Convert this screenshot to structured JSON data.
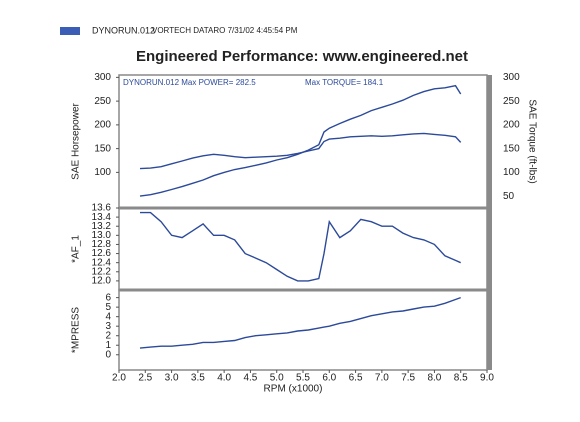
{
  "header": {
    "swatch_label": "DYNORUN.012",
    "info": "VORTECH DATARO 7/31/02 4:45:54 PM",
    "color": "#3b5db5"
  },
  "chart_data": [
    {
      "type": "line",
      "title": "Engineered Performance:   www.engineered.net",
      "annotations": [
        "DYNORUN.012  Max POWER= 282.5",
        "Max TORQUE= 184.1"
      ],
      "ylabel": "SAE Horsepower",
      "y2label": "SAE Torque (ft-lbs)",
      "x": [
        2.4,
        2.6,
        2.8,
        3.0,
        3.2,
        3.4,
        3.6,
        3.8,
        4.0,
        4.2,
        4.4,
        4.6,
        4.8,
        5.0,
        5.2,
        5.4,
        5.6,
        5.8,
        5.9,
        6.0,
        6.2,
        6.4,
        6.6,
        6.8,
        7.0,
        7.2,
        7.4,
        7.6,
        7.8,
        8.0,
        8.2,
        8.4,
        8.5
      ],
      "ylim": [
        25,
        305
      ],
      "yticks": [
        100,
        150,
        200,
        250,
        300
      ],
      "y2lim": [
        25,
        305
      ],
      "y2ticks": [
        50,
        100,
        150,
        200,
        250,
        300
      ],
      "series": [
        {
          "color": "#2c4a9a",
          "axis": "y",
          "values": [
            50,
            53,
            58,
            64,
            70,
            77,
            84,
            93,
            100,
            106,
            110,
            115,
            120,
            126,
            131,
            138,
            147,
            158,
            185,
            193,
            203,
            212,
            220,
            230,
            237,
            244,
            252,
            262,
            270,
            276,
            278,
            282.5,
            265
          ]
        },
        {
          "color": "#2c4a9a",
          "axis": "y2",
          "values": [
            108,
            109,
            112,
            118,
            124,
            130,
            135,
            138,
            136,
            133,
            131,
            132,
            133,
            134,
            136,
            140,
            145,
            150,
            165,
            170,
            172,
            175,
            176,
            177,
            176,
            177,
            179,
            181,
            182,
            180,
            178,
            175,
            163
          ]
        }
      ]
    },
    {
      "type": "line",
      "ylabel": "*AF_1",
      "x": [
        2.4,
        2.6,
        2.8,
        3.0,
        3.2,
        3.4,
        3.6,
        3.8,
        4.0,
        4.2,
        4.4,
        4.6,
        4.8,
        5.0,
        5.2,
        5.4,
        5.6,
        5.8,
        5.9,
        6.0,
        6.2,
        6.4,
        6.6,
        6.8,
        7.0,
        7.2,
        7.4,
        7.6,
        7.8,
        8.0,
        8.2,
        8.4,
        8.5
      ],
      "ylim": [
        11.8,
        13.6
      ],
      "yticks": [
        {
          "value": 12,
          "label": "12.0"
        },
        12.2,
        12.4,
        12.6,
        12.8,
        {
          "value": 13,
          "label": "13.0"
        },
        13.2,
        13.4,
        13.6
      ],
      "series": [
        {
          "color": "#2c4a9a",
          "values": [
            13.5,
            13.5,
            13.3,
            13.0,
            12.95,
            13.1,
            13.25,
            13.0,
            13.0,
            12.9,
            12.6,
            12.5,
            12.4,
            12.25,
            12.1,
            12.0,
            12.0,
            12.05,
            12.6,
            13.3,
            12.95,
            13.1,
            13.35,
            13.3,
            13.2,
            13.2,
            13.05,
            12.95,
            12.9,
            12.8,
            12.55,
            12.45,
            12.4
          ]
        }
      ]
    },
    {
      "type": "line",
      "ylabel": "*MPRESS",
      "xlabel": "RPM (x1000)",
      "x": [
        2.4,
        2.6,
        2.8,
        3.0,
        3.2,
        3.4,
        3.6,
        3.8,
        4.0,
        4.2,
        4.4,
        4.6,
        4.8,
        5.0,
        5.2,
        5.4,
        5.6,
        5.8,
        5.9,
        6.0,
        6.2,
        6.4,
        6.6,
        6.8,
        7.0,
        7.2,
        7.4,
        7.6,
        7.8,
        8.0,
        8.2,
        8.4,
        8.5
      ],
      "ylim": [
        -1.6,
        6.8
      ],
      "yticks": [
        0,
        1,
        2,
        3,
        4,
        5,
        6
      ],
      "xlim": [
        2.0,
        9.0
      ],
      "xticks": [
        {
          "value": 2,
          "label": "2.0"
        },
        2.5,
        {
          "value": 3,
          "label": "3.0"
        },
        3.5,
        {
          "value": 4,
          "label": "4.0"
        },
        4.5,
        {
          "value": 5,
          "label": "5.0"
        },
        5.5,
        {
          "value": 6,
          "label": "6.0"
        },
        6.5,
        {
          "value": 7,
          "label": "7.0"
        },
        7.5,
        {
          "value": 8,
          "label": "8.0"
        },
        8.5,
        {
          "value": 9,
          "label": "9.0"
        }
      ],
      "series": [
        {
          "color": "#2c4a9a",
          "values": [
            0.7,
            0.8,
            0.9,
            0.9,
            1.0,
            1.1,
            1.3,
            1.3,
            1.4,
            1.5,
            1.8,
            2.0,
            2.1,
            2.2,
            2.3,
            2.5,
            2.6,
            2.8,
            2.9,
            3.0,
            3.3,
            3.5,
            3.8,
            4.1,
            4.3,
            4.5,
            4.6,
            4.8,
            5.0,
            5.1,
            5.4,
            5.8,
            6.0
          ]
        }
      ]
    }
  ]
}
